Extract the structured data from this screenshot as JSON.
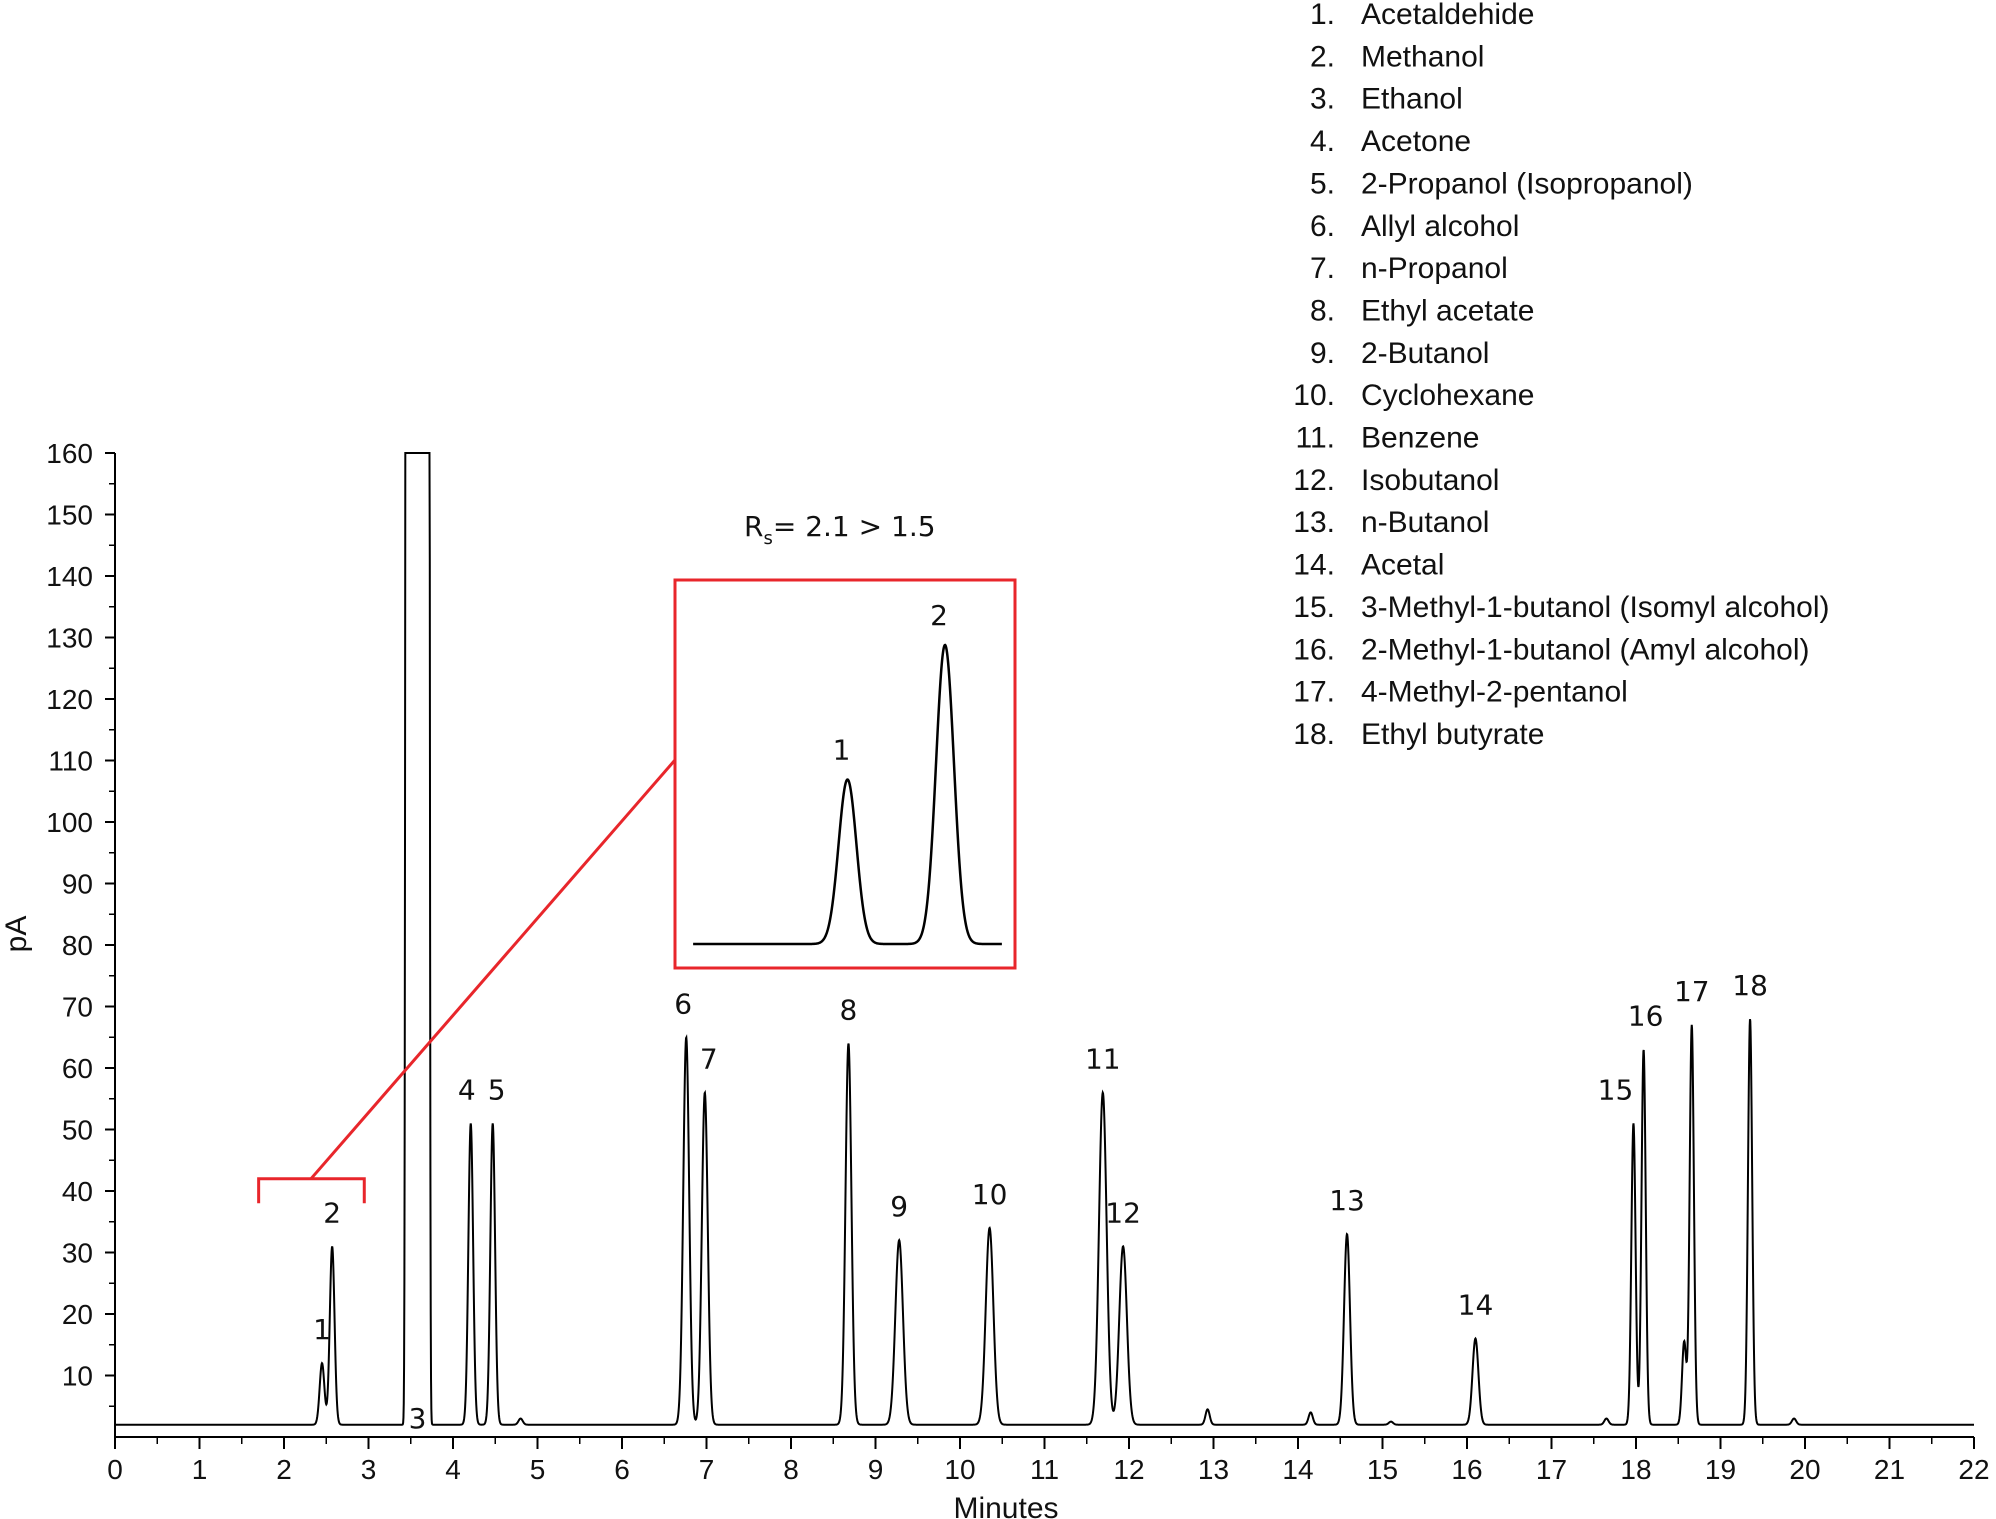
{
  "chart_data": {
    "type": "line",
    "title": "",
    "xlabel": "Minutes",
    "ylabel": "pA",
    "xlim": [
      0,
      22
    ],
    "ylim": [
      0,
      160
    ],
    "x_ticks": [
      "0",
      "1",
      "2",
      "3",
      "4",
      "5",
      "6",
      "7",
      "8",
      "9",
      "10",
      "11",
      "12",
      "13",
      "14",
      "15",
      "16",
      "17",
      "18",
      "19",
      "20",
      "21",
      "22"
    ],
    "y_ticks": [
      "10",
      "20",
      "30",
      "40",
      "50",
      "60",
      "70",
      "80",
      "90",
      "100",
      "110",
      "120",
      "130",
      "140",
      "150",
      "160"
    ],
    "baseline": 2,
    "series": [
      {
        "peaks": [
          {
            "label": "1",
            "x": 2.45,
            "y": 12
          },
          {
            "label": "2",
            "x": 2.57,
            "y": 31
          },
          {
            "label": "3",
            "x": 3.58,
            "y": 160
          },
          {
            "label": "4",
            "x": 4.21,
            "y": 51
          },
          {
            "label": "5",
            "x": 4.47,
            "y": 51
          },
          {
            "label": "6",
            "x": 6.76,
            "y": 65
          },
          {
            "label": "7",
            "x": 6.98,
            "y": 56
          },
          {
            "label": "8",
            "x": 8.68,
            "y": 64
          },
          {
            "label": "9",
            "x": 9.28,
            "y": 32
          },
          {
            "label": "10",
            "x": 10.35,
            "y": 34
          },
          {
            "label": "11",
            "x": 11.69,
            "y": 56
          },
          {
            "label": "12",
            "x": 11.93,
            "y": 31
          },
          {
            "label": "13",
            "x": 14.58,
            "y": 33
          },
          {
            "label": "14",
            "x": 16.1,
            "y": 16
          },
          {
            "label": "15",
            "x": 17.97,
            "y": 51
          },
          {
            "label": "16",
            "x": 18.09,
            "y": 63
          },
          {
            "label": "17",
            "x": 18.66,
            "y": 67
          },
          {
            "label": "18",
            "x": 19.35,
            "y": 68
          }
        ],
        "minor_peaks": [
          {
            "x": 4.8,
            "y": 3
          },
          {
            "x": 12.93,
            "y": 4.5
          },
          {
            "x": 14.15,
            "y": 4
          },
          {
            "x": 15.1,
            "y": 2.5
          },
          {
            "x": 17.65,
            "y": 3
          },
          {
            "x": 18.57,
            "y": 15.5
          },
          {
            "x": 19.87,
            "y": 3
          }
        ]
      }
    ],
    "inset": {
      "rs_text": "= 2.1 > 1.5",
      "rs_symbol": "R",
      "rs_subscript": "s",
      "zoom_range": [
        1.7,
        2.95
      ],
      "peaks": [
        {
          "label": "1",
          "x": 2.45,
          "y": 0.55
        },
        {
          "label": "2",
          "x": 2.57,
          "y": 1.0
        }
      ]
    },
    "legend_position": "top-right",
    "legend": [
      {
        "num": "1.",
        "name": "Acetaldehide"
      },
      {
        "num": "2.",
        "name": "Methanol"
      },
      {
        "num": "3.",
        "name": "Ethanol"
      },
      {
        "num": "4.",
        "name": "Acetone"
      },
      {
        "num": "5.",
        "name": "2-Propanol (Isopropanol)"
      },
      {
        "num": "6.",
        "name": "Allyl alcohol"
      },
      {
        "num": "7.",
        "name": "n-Propanol"
      },
      {
        "num": "8.",
        "name": "Ethyl acetate"
      },
      {
        "num": "9.",
        "name": "2-Butanol"
      },
      {
        "num": "10.",
        "name": "Cyclohexane"
      },
      {
        "num": "11.",
        "name": "Benzene"
      },
      {
        "num": "12.",
        "name": "Isobutanol"
      },
      {
        "num": "13.",
        "name": "n-Butanol"
      },
      {
        "num": "14.",
        "name": "Acetal"
      },
      {
        "num": "15.",
        "name": "3-Methyl-1-butanol (Isomyl alcohol)"
      },
      {
        "num": "16.",
        "name": "2-Methyl-1-butanol (Amyl alcohol)"
      },
      {
        "num": "17.",
        "name": "4-Methyl-2-pentanol"
      },
      {
        "num": "18.",
        "name": "Ethyl butyrate"
      }
    ],
    "colors": {
      "trace": "#000000",
      "highlight": "#e8262b"
    }
  }
}
